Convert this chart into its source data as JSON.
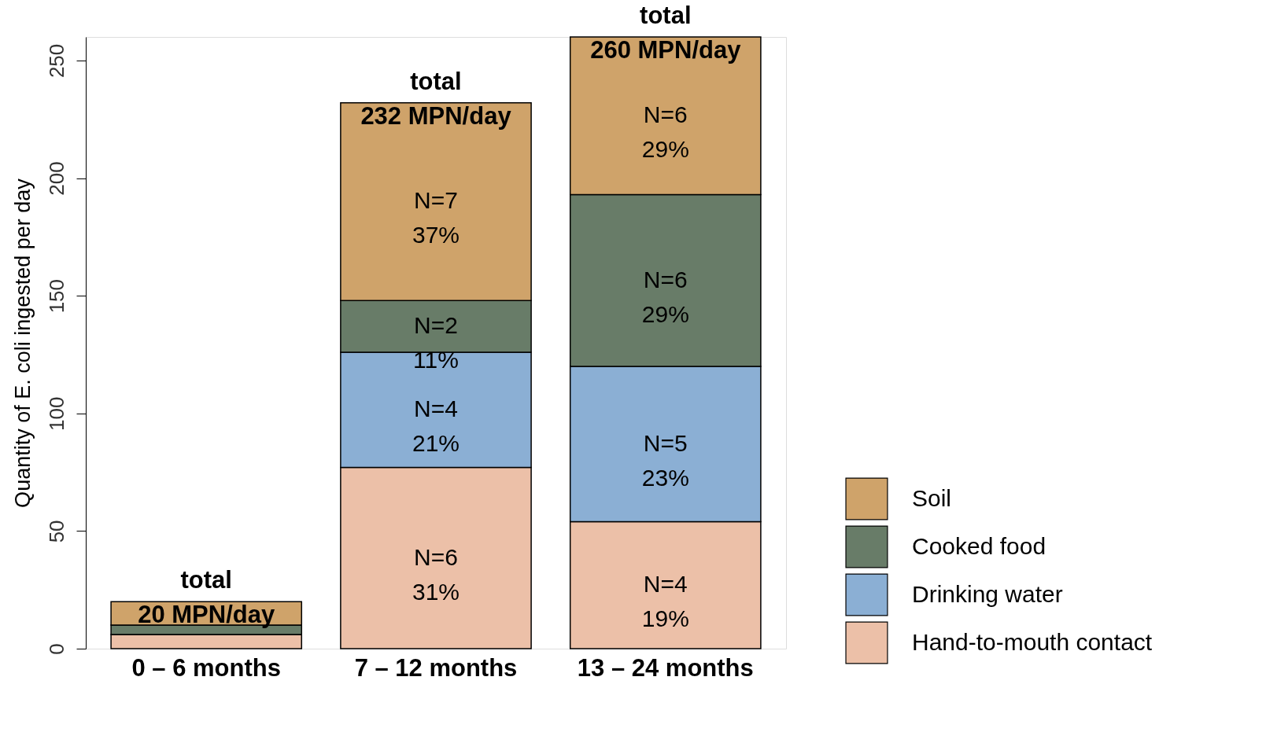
{
  "chart_data": {
    "type": "bar",
    "stacked": true,
    "ylabel": "Quantity of E. coli  ingested per day",
    "categories": [
      "0 – 6 months",
      "7 – 12 months",
      "13 – 24 months"
    ],
    "series": [
      {
        "name": "Hand-to-mouth contact",
        "color": "#ecc0a8",
        "values": [
          6,
          77,
          54
        ]
      },
      {
        "name": "Drinking water",
        "color": "#8bafd4",
        "values": [
          0,
          49,
          66
        ]
      },
      {
        "name": "Cooked food",
        "color": "#687c68",
        "values": [
          4,
          22,
          73
        ]
      },
      {
        "name": "Soil",
        "color": "#cfa36a",
        "values": [
          10,
          84,
          67
        ]
      }
    ],
    "annotations": [
      "N=6\n31%",
      "N=4\n21%",
      "N=2\n11%",
      "N=7\n37%",
      "N=4\n19%",
      "N=5\n23%",
      "N=6\n29%",
      "N=6\n29%"
    ],
    "totals": [
      "total\n20 MPN/day",
      "total\n232 MPN/day",
      "total\n260 MPN/day"
    ],
    "ylim": [
      0,
      260
    ],
    "yticks": [
      0,
      50,
      100,
      150,
      200,
      250
    ],
    "grid": false,
    "legend": "bottom right"
  }
}
